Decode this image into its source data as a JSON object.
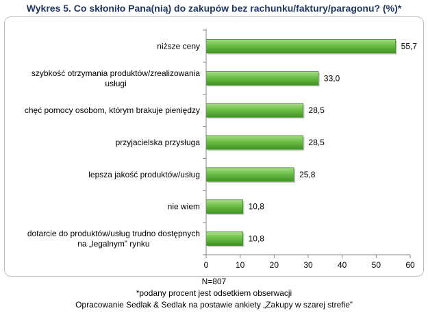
{
  "chart_data": {
    "type": "bar",
    "orientation": "horizontal",
    "title": "Wykres 5. Co skłoniło Pana(nią) do zakupów bez rachunku/faktury/paragonu?  (%)*",
    "categories": [
      "niższe ceny",
      "szybkość otrzymania produktów/zrealizowania usługi",
      "chęć pomocy osobom, którym brakuje pieniędzy",
      "przyjacielska przysługa",
      "lepsza jakość produktów/usług",
      "nie wiem",
      "dotarcie do produktów/usług trudno dostępnych na „legalnym” rynku"
    ],
    "category_lines": [
      [
        "niższe ceny"
      ],
      [
        "szybkość otrzymania produktów/zrealizowania",
        "usługi"
      ],
      [
        "chęć pomocy osobom, którym brakuje pieniędzy"
      ],
      [
        "przyjacielska przysługa"
      ],
      [
        "lepsza jakość produktów/usług"
      ],
      [
        "nie wiem"
      ],
      [
        "dotarcie do produktów/usług trudno dostępnych",
        "na „legalnym” rynku"
      ]
    ],
    "values": [
      55.7,
      33.0,
      28.5,
      28.5,
      25.8,
      10.8,
      10.8
    ],
    "value_labels": [
      "55,7",
      "33,0",
      "28,5",
      "28,5",
      "25,8",
      "10,8",
      "10,8"
    ],
    "xlim": [
      0,
      60
    ],
    "xticks": [
      0,
      10,
      20,
      30,
      40,
      50,
      60
    ],
    "grid": false,
    "bar_color": "#4ea72e"
  },
  "footer": {
    "n": "N=807",
    "note": "*podany procent jest odsetkiem obserwacji",
    "source": "Opracowanie Sedlak & Sedlak na postawie ankiety „Zakupy w szarej strefie”"
  }
}
